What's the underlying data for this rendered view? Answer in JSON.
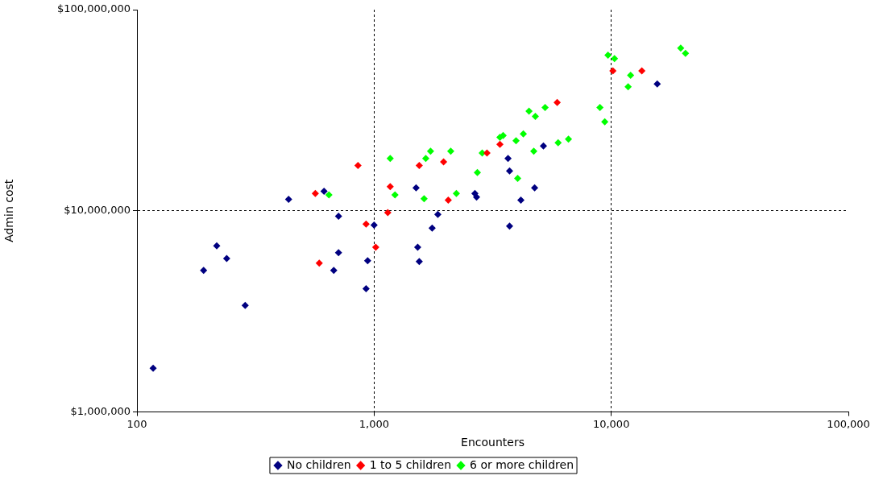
{
  "chart_data": {
    "type": "scatter",
    "xlabel": "Encounters",
    "ylabel": "Admin cost",
    "log": "xy",
    "grid": true,
    "line_style": "dashed",
    "legend": "bottom",
    "marker": "diamond",
    "xlim": [
      100,
      100000
    ],
    "xticks": [
      100,
      {
        "value": 1000,
        "label": "1,000"
      },
      {
        "value": 10000,
        "label": "10,000"
      },
      {
        "value": 100000,
        "label": "100,000"
      }
    ],
    "ylim": [
      1000000,
      100000000
    ],
    "yticks": [
      {
        "value": 1000000,
        "label": "$1,000,000"
      },
      {
        "value": 10000000,
        "label": "$10,000,000"
      },
      {
        "value": 100000000,
        "label": "$100,000,000"
      }
    ],
    "series": [
      {
        "name": "No children",
        "color": "#000080",
        "x": [
          117,
          191,
          217,
          239,
          286,
          436,
          615,
          676,
          708,
          708,
          925,
          939,
          1000,
          1503,
          1527,
          1550,
          1757,
          1857,
          2661,
          2704,
          3671,
          3726,
          3726,
          4159,
          4753,
          5176,
          15630
        ],
        "values": [
          1650000,
          5060000,
          6700000,
          5800000,
          3390000,
          11400000,
          12500000,
          5060000,
          6200000,
          9400000,
          4100000,
          5650000,
          8500000,
          13000000,
          6600000,
          5600000,
          8200000,
          9600000,
          12200000,
          11700000,
          18200000,
          15800000,
          8400000,
          11300000,
          13000000,
          21000000,
          42700000
        ]
      },
      {
        "name": "1 to 5 children",
        "color": "#ff0000",
        "x": [
          565,
          587,
          855,
          925,
          1016,
          1142,
          1169,
          1550,
          1963,
          2055,
          2993,
          3393,
          5915,
          10160,
          13460
        ],
        "values": [
          12200000,
          5500000,
          16800000,
          8600000,
          6600000,
          9800000,
          13200000,
          16800000,
          17500000,
          11300000,
          19400000,
          21400000,
          34600000,
          49600000,
          49600000
        ]
      },
      {
        "name": "6 or more children",
        "color": "#00ff00",
        "x": [
          645,
          1169,
          1225,
          1625,
          1651,
          1730,
          2104,
          2223,
          2725,
          2856,
          3393,
          3500,
          3968,
          4030,
          4259,
          4500,
          4713,
          4786,
          5260,
          5970,
          6600,
          8960,
          9390,
          9690,
          10320,
          11780,
          12070,
          19630,
          20560
        ],
        "values": [
          12000000,
          18200000,
          12000000,
          11500000,
          18200000,
          19800000,
          19800000,
          12200000,
          15500000,
          19400000,
          23200000,
          23700000,
          22300000,
          14500000,
          24100000,
          31300000,
          19800000,
          29500000,
          32600000,
          21800000,
          22700000,
          32600000,
          27700000,
          59400000,
          57100000,
          41400000,
          47200000,
          64400000,
          60700000
        ]
      }
    ]
  }
}
